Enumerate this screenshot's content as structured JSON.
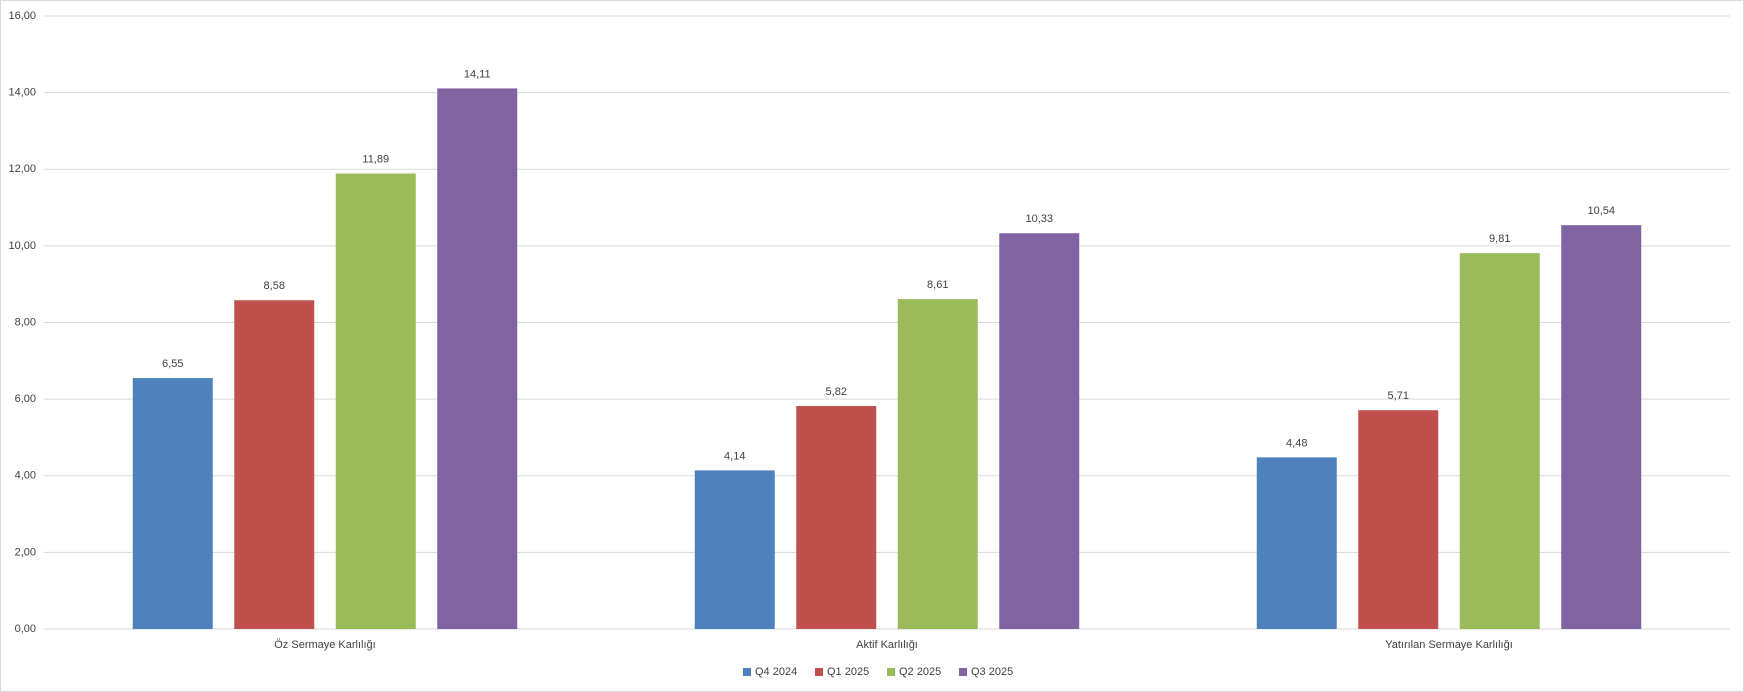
{
  "chart_data": {
    "type": "bar",
    "categories": [
      "Öz Sermaye Karlılığı",
      "Aktif Karlılığı",
      "Yatırılan Sermaye Karlılığı"
    ],
    "series": [
      {
        "name": "Q4 2024",
        "color": "#4f81bd",
        "values": [
          6.55,
          4.14,
          4.48
        ],
        "value_labels": [
          "6,55",
          "4,14",
          "4,48"
        ]
      },
      {
        "name": "Q1 2025",
        "color": "#c0504d",
        "values": [
          8.58,
          5.82,
          5.71
        ],
        "value_labels": [
          "8,58",
          "5,82",
          "5,71"
        ]
      },
      {
        "name": "Q2 2025",
        "color": "#9bbb59",
        "values": [
          11.89,
          8.61,
          9.81
        ],
        "value_labels": [
          "11,89",
          "8,61",
          "9,81"
        ]
      },
      {
        "name": "Q3 2025",
        "color": "#8064a2",
        "values": [
          14.11,
          10.33,
          10.54
        ],
        "value_labels": [
          "14,11",
          "10,33",
          "10,54"
        ]
      }
    ],
    "ylim": [
      0,
      16
    ],
    "yticks": [
      {
        "value": 0,
        "label": "0,00"
      },
      {
        "value": 2,
        "label": "2,00"
      },
      {
        "value": 4,
        "label": "4,00"
      },
      {
        "value": 6,
        "label": "6,00"
      },
      {
        "value": 8,
        "label": "8,00"
      },
      {
        "value": 10,
        "label": "10,00"
      },
      {
        "value": 12,
        "label": "12,00"
      },
      {
        "value": 14,
        "label": "14,00"
      },
      {
        "value": 16,
        "label": "16,00"
      }
    ],
    "grid": true,
    "legend": "bottom"
  }
}
